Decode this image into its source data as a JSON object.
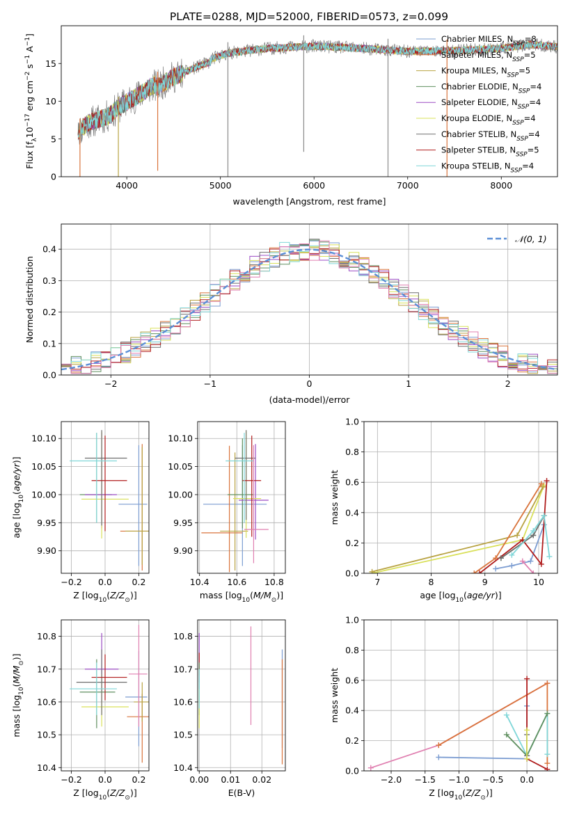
{
  "figure_title": "PLATE=0288, MJD=52000, FIBERID=0573, z=0.099",
  "colors": {
    "Chabrier MILES": "#7b9cd1",
    "Salpeter MILES": "#d9733b",
    "Kroupa MILES": "#b8a241",
    "Chabrier ELODIE": "#5f8f5f",
    "Salpeter ELODIE": "#9b4bc4",
    "Kroupa ELODIE": "#d9e05a",
    "Chabrier STELIB": "#6f6f6f",
    "Salpeter STELIB": "#b01c1c",
    "Kroupa STELIB": "#7fd6d8",
    "Pink": "#e07fb0",
    "Normal": "#5b8fd6"
  },
  "chart_data": [
    {
      "type": "line",
      "id": "spectrum",
      "title": "PLATE=0288, MJD=52000, FIBERID=0573, z=0.099",
      "xlabel": "wavelength [Angstrom, rest frame]",
      "ylabel": "Flux [fλ10⁻¹⁷ erg cm⁻² s⁻¹ A⁻¹]",
      "xlim": [
        3300,
        8600
      ],
      "ylim": [
        0,
        20
      ],
      "xticks": [
        4000,
        5000,
        6000,
        7000,
        8000
      ],
      "yticks": [
        0,
        5,
        10,
        15
      ],
      "grid": false,
      "legend_position": "top-right",
      "legend": [
        "Chabrier MILES, N_SSP=8",
        "Salpeter MILES, N_SSP=5",
        "Kroupa MILES, N_SSP=5",
        "Chabrier ELODIE, N_SSP=4",
        "Salpeter ELODIE, N_SSP=4",
        "Kroupa ELODIE, N_SSP=4",
        "Chabrier STELIB, N_SSP=4",
        "Salpeter STELIB, N_SSP=5",
        "Kroupa STELIB, N_SSP=4"
      ],
      "continuum": [
        [
          3480,
          6.0
        ],
        [
          3600,
          7.2
        ],
        [
          3800,
          8.0
        ],
        [
          3950,
          9.5
        ],
        [
          4100,
          10.6
        ],
        [
          4300,
          12.2
        ],
        [
          4500,
          13.6
        ],
        [
          4800,
          15.2
        ],
        [
          5100,
          16.4
        ],
        [
          5500,
          17.0
        ],
        [
          6000,
          17.3
        ],
        [
          6500,
          17.0
        ],
        [
          7000,
          16.6
        ],
        [
          7500,
          16.7
        ],
        [
          8000,
          17.0
        ],
        [
          8300,
          17.5
        ],
        [
          8600,
          17.2
        ]
      ],
      "spikes": [
        [
          3500,
          0
        ],
        [
          3910,
          0
        ],
        [
          4330,
          0.8
        ],
        [
          5080,
          0
        ],
        [
          5890,
          3.3
        ],
        [
          6790,
          0
        ],
        [
          7420,
          0
        ]
      ]
    },
    {
      "type": "line",
      "id": "residual_histogram",
      "xlabel": "(data-model)/error",
      "ylabel": "Normed distribution",
      "xlim": [
        -2.5,
        2.5
      ],
      "ylim": [
        0,
        0.48
      ],
      "xticks": [
        -2,
        -1,
        0,
        1,
        2
      ],
      "yticks": [
        0.0,
        0.1,
        0.2,
        0.3,
        0.4
      ],
      "grid": true,
      "legend_position": "top-right",
      "legend": [
        "𝒩(0, 1)"
      ],
      "bin_width": 0.1,
      "bins": 50
    },
    {
      "type": "scatter",
      "id": "age_vs_Z",
      "xlabel": "Z [log10(Z/Z⊙)]",
      "ylabel": "age  [log10(age/yr)]",
      "xlim": [
        -0.26,
        0.26
      ],
      "ylim": [
        9.86,
        10.13
      ],
      "xticks": [
        -0.2,
        0.0,
        0.2
      ],
      "yticks": [
        9.9,
        9.95,
        10.0,
        10.05,
        10.1
      ],
      "grid": true,
      "points": [
        {
          "series": "Chabrier MILES",
          "x": 0.2,
          "y": 9.983,
          "xerr": [
            0.12,
            0.05
          ],
          "yerr": [
            0.11,
            0.105
          ]
        },
        {
          "series": "Salpeter MILES",
          "x": 0.22,
          "y": 9.935,
          "xerr": [
            0.13,
            0.05
          ],
          "yerr": [
            0.07,
            0.155
          ]
        },
        {
          "series": "Kroupa MILES",
          "x": 0.22,
          "y": 9.935,
          "xerr": [
            0.1,
            0.05
          ],
          "yerr": [
            0.06,
            0.15
          ]
        },
        {
          "series": "Chabrier ELODIE",
          "x": -0.05,
          "y": 10.0,
          "xerr": [
            0.1,
            0.09
          ],
          "yerr": [
            0.05,
            0.11
          ]
        },
        {
          "series": "Salpeter ELODIE",
          "x": -0.02,
          "y": 10.0,
          "xerr": [
            0.1,
            0.09
          ],
          "yerr": [
            0.06,
            0.11
          ]
        },
        {
          "series": "Kroupa ELODIE",
          "x": -0.02,
          "y": 9.992,
          "xerr": [
            0.12,
            0.16
          ],
          "yerr": [
            0.07,
            0.12
          ]
        },
        {
          "series": "Chabrier STELIB",
          "x": -0.02,
          "y": 10.065,
          "xerr": [
            0.1,
            0.15
          ],
          "yerr": [
            0.12,
            0.05
          ]
        },
        {
          "series": "Salpeter STELIB",
          "x": 0.0,
          "y": 10.025,
          "xerr": [
            0.08,
            0.13
          ],
          "yerr": [
            0.09,
            0.08
          ]
        },
        {
          "series": "Kroupa STELIB",
          "x": -0.05,
          "y": 10.06,
          "xerr": [
            0.16,
            0.12
          ],
          "yerr": [
            0.11,
            0.05
          ]
        }
      ]
    },
    {
      "type": "scatter",
      "id": "age_vs_mass",
      "xlabel": "mass [log10(M/M⊙)]",
      "ylabel": "",
      "xlim": [
        10.39,
        10.86
      ],
      "ylim": [
        9.86,
        10.13
      ],
      "xticks": [
        10.4,
        10.6,
        10.8
      ],
      "yticks": [
        9.9,
        9.95,
        10.0,
        10.05,
        10.1
      ],
      "grid": true,
      "points": [
        {
          "series": "Chabrier MILES",
          "x": 10.63,
          "y": 9.983,
          "xerr": [
            0.21,
            0.13
          ],
          "yerr": [
            0.11,
            0.105
          ]
        },
        {
          "series": "Salpeter MILES",
          "x": 10.56,
          "y": 9.932,
          "xerr": [
            0.15,
            0.07
          ],
          "yerr": [
            0.07,
            0.155
          ]
        },
        {
          "series": "Kroupa MILES",
          "x": 10.59,
          "y": 9.935,
          "xerr": [
            0.08,
            0.07
          ],
          "yerr": [
            0.07,
            0.14
          ]
        },
        {
          "series": "Chabrier ELODIE",
          "x": 10.63,
          "y": 10.0,
          "xerr": [
            0.08,
            0.06
          ],
          "yerr": [
            0.06,
            0.1
          ]
        },
        {
          "series": "Salpeter ELODIE",
          "x": 10.7,
          "y": 9.99,
          "xerr": [
            0.09,
            0.07
          ],
          "yerr": [
            0.07,
            0.1
          ]
        },
        {
          "series": "Kroupa ELODIE",
          "x": 10.65,
          "y": 9.993,
          "xerr": [
            0.07,
            0.08
          ],
          "yerr": [
            0.07,
            0.12
          ]
        },
        {
          "series": "Chabrier STELIB",
          "x": 10.65,
          "y": 10.065,
          "xerr": [
            0.06,
            0.05
          ],
          "yerr": [
            0.11,
            0.05
          ]
        },
        {
          "series": "Salpeter STELIB",
          "x": 10.68,
          "y": 10.025,
          "xerr": [
            0.05,
            0.05
          ],
          "yerr": [
            0.1,
            0.08
          ]
        },
        {
          "series": "Kroupa STELIB",
          "x": 10.64,
          "y": 10.06,
          "xerr": [
            0.1,
            0.05
          ],
          "yerr": [
            0.11,
            0.05
          ]
        },
        {
          "series": "Pink",
          "x": 10.69,
          "y": 9.938,
          "xerr": [
            0.05,
            0.08
          ],
          "yerr": [
            0.06,
            0.15
          ]
        }
      ]
    },
    {
      "type": "line",
      "id": "weight_vs_age",
      "xlabel": "age  [log10(age/yr)]",
      "ylabel": "mass weight",
      "xlim": [
        6.75,
        10.35
      ],
      "ylim": [
        0,
        1.0
      ],
      "xticks": [
        7,
        8,
        9,
        10
      ],
      "yticks": [
        0.0,
        0.2,
        0.4,
        0.6,
        0.8,
        1.0
      ],
      "grid": true,
      "series": [
        {
          "name": "Kroupa ELODIE",
          "x": [
            6.9,
            9.7,
            10.1
          ],
          "y": [
            0.0,
            0.22,
            0.58
          ]
        },
        {
          "name": "Kroupa MILES",
          "x": [
            6.9,
            9.6,
            10.08
          ],
          "y": [
            0.01,
            0.25,
            0.57
          ]
        },
        {
          "name": "Salpeter MILES",
          "x": [
            8.8,
            9.2,
            10.05
          ],
          "y": [
            0.0,
            0.1,
            0.59
          ]
        },
        {
          "name": "Chabrier MILES",
          "x": [
            9.2,
            9.5,
            9.85,
            10.1
          ],
          "y": [
            0.03,
            0.05,
            0.08,
            0.32
          ]
        },
        {
          "name": "Salpeter STELIB",
          "x": [
            8.9,
            9.7,
            10.05,
            10.15
          ],
          "y": [
            0.0,
            0.22,
            0.06,
            0.61
          ]
        },
        {
          "name": "Chabrier ELODIE",
          "x": [
            9.3,
            9.9,
            10.1
          ],
          "y": [
            0.1,
            0.25,
            0.38
          ]
        },
        {
          "name": "Chabrier STELIB",
          "x": [
            9.3,
            9.9,
            10.1
          ],
          "y": [
            0.1,
            0.25,
            0.38
          ]
        },
        {
          "name": "Kroupa STELIB",
          "x": [
            9.5,
            9.9,
            10.1,
            10.2
          ],
          "y": [
            0.12,
            0.28,
            0.38,
            0.11
          ]
        },
        {
          "name": "Pink",
          "x": [
            9.7,
            9.9
          ],
          "y": [
            0.08,
            0.0
          ]
        }
      ]
    },
    {
      "type": "scatter",
      "id": "mass_vs_Z",
      "xlabel": "Z [log10(Z/Z⊙)]",
      "ylabel": "mass [log10(M/M⊙)]",
      "xlim": [
        -0.26,
        0.26
      ],
      "ylim": [
        10.39,
        10.85
      ],
      "xticks": [
        -0.2,
        0.0,
        0.2
      ],
      "yticks": [
        10.4,
        10.5,
        10.6,
        10.7,
        10.8
      ],
      "grid": true,
      "points": [
        {
          "series": "Chabrier MILES",
          "x": 0.2,
          "y": 10.615,
          "xerr": [
            0.08,
            0.05
          ],
          "yerr": [
            0.15,
            0.14
          ]
        },
        {
          "series": "Salpeter MILES",
          "x": 0.22,
          "y": 10.555,
          "xerr": [
            0.09,
            0.05
          ],
          "yerr": [
            0.14,
            0.07
          ]
        },
        {
          "series": "Kroupa MILES",
          "x": 0.22,
          "y": 10.6,
          "xerr": [
            0.05,
            0.05
          ],
          "yerr": [
            0.06,
            0.06
          ]
        },
        {
          "series": "Chabrier ELODIE",
          "x": -0.05,
          "y": 10.63,
          "xerr": [
            0.1,
            0.11
          ],
          "yerr": [
            0.11,
            0.1
          ]
        },
        {
          "series": "Salpeter ELODIE",
          "x": -0.02,
          "y": 10.7,
          "xerr": [
            0.1,
            0.1
          ],
          "yerr": [
            0.1,
            0.11
          ]
        },
        {
          "series": "Kroupa ELODIE",
          "x": -0.02,
          "y": 10.585,
          "xerr": [
            0.12,
            0.16
          ],
          "yerr": [
            0.06,
            0.1
          ]
        },
        {
          "series": "Chabrier STELIB",
          "x": -0.02,
          "y": 10.66,
          "xerr": [
            0.15,
            0.15
          ],
          "yerr": [
            0.1,
            0.1
          ]
        },
        {
          "series": "Salpeter STELIB",
          "x": 0.0,
          "y": 10.675,
          "xerr": [
            0.08,
            0.13
          ],
          "yerr": [
            0.07,
            0.07
          ]
        },
        {
          "series": "Kroupa STELIB",
          "x": -0.05,
          "y": 10.64,
          "xerr": [
            0.16,
            0.12
          ],
          "yerr": [
            0.08,
            0.08
          ]
        },
        {
          "series": "Pink",
          "x": 0.2,
          "y": 10.685,
          "xerr": [
            0.06,
            0.05
          ],
          "yerr": [
            0.16,
            0.15
          ]
        }
      ]
    },
    {
      "type": "scatter",
      "id": "mass_vs_EBV",
      "xlabel": "E(B-V)",
      "ylabel": "",
      "xlim": [
        -0.0005,
        0.0275
      ],
      "ylim": [
        10.39,
        10.85
      ],
      "xticks": [
        0.0,
        0.01,
        0.02
      ],
      "yticks": [
        10.4,
        10.5,
        10.6,
        10.7,
        10.8
      ],
      "grid": true,
      "points": [
        {
          "series": "Salpeter ELODIE",
          "x": 0.0,
          "y": 10.74,
          "yerr": [
            0.08,
            0.07
          ]
        },
        {
          "series": "Salpeter STELIB",
          "x": 0.0,
          "y": 10.72,
          "yerr": [
            0.04,
            0.03
          ]
        },
        {
          "series": "Chabrier ELODIE",
          "x": 0.0,
          "y": 10.64,
          "yerr": [
            0.08,
            0.08
          ]
        },
        {
          "series": "Kroupa ELODIE",
          "x": 0.0,
          "y": 10.58,
          "yerr": [
            0.06,
            0.06
          ]
        },
        {
          "series": "Kroupa STELIB",
          "x": 0.0,
          "y": 10.64,
          "yerr": [
            0.06,
            0.06
          ]
        },
        {
          "series": "Pink",
          "x": 0.0165,
          "y": 10.68,
          "yerr": [
            0.15,
            0.15
          ]
        },
        {
          "series": "Chabrier MILES",
          "x": 0.0265,
          "y": 10.61,
          "yerr": [
            0.15,
            0.15
          ]
        },
        {
          "series": "Salpeter MILES",
          "x": 0.0265,
          "y": 10.57,
          "yerr": [
            0.16,
            0.16
          ]
        }
      ]
    },
    {
      "type": "line",
      "id": "weight_vs_Z",
      "xlabel": "Z [log10(Z/Z⊙)]",
      "ylabel": "mass weight",
      "xlim": [
        -2.4,
        0.45
      ],
      "ylim": [
        0,
        1.0
      ],
      "xticks": [
        -2.0,
        -1.5,
        -1.0,
        -0.5,
        0.0
      ],
      "yticks": [
        0.0,
        0.2,
        0.4,
        0.6,
        0.8,
        1.0
      ],
      "grid": true,
      "series": [
        {
          "name": "Pink",
          "x": [
            -2.3,
            -1.3,
            0.3
          ],
          "y": [
            0.02,
            0.17,
            0.58
          ]
        },
        {
          "name": "Salpeter MILES",
          "x": [
            -1.3,
            0.3,
            0.3
          ],
          "y": [
            0.17,
            0.58,
            0.05
          ]
        },
        {
          "name": "Chabrier MILES",
          "x": [
            -1.3,
            0.0,
            0.0
          ],
          "y": [
            0.09,
            0.08,
            0.43
          ]
        },
        {
          "name": "Salpeter STELIB",
          "x": [
            0.0,
            0.0,
            0.3
          ],
          "y": [
            0.61,
            0.08,
            0.01
          ]
        },
        {
          "name": "Kroupa STELIB",
          "x": [
            -0.3,
            0.0,
            0.3,
            0.3
          ],
          "y": [
            0.37,
            0.1,
            0.38,
            0.11
          ]
        },
        {
          "name": "Chabrier ELODIE",
          "x": [
            -0.3,
            0.0,
            0.3
          ],
          "y": [
            0.24,
            0.1,
            0.38
          ]
        },
        {
          "name": "Chabrier STELIB",
          "x": [
            0.0,
            0.0
          ],
          "y": [
            0.24,
            0.1
          ]
        },
        {
          "name": "Kroupa ELODIE",
          "x": [
            0.0,
            0.0
          ],
          "y": [
            0.27,
            0.08
          ]
        }
      ]
    }
  ]
}
